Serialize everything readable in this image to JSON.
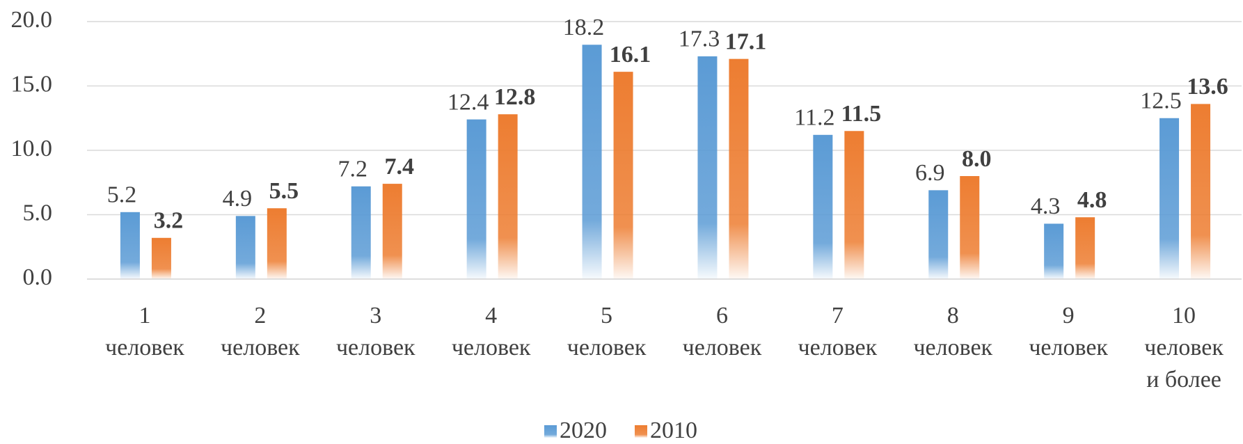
{
  "chart_data": {
    "type": "bar",
    "categories": [
      "1\nчеловек",
      "2\nчеловек",
      "3\nчеловек",
      "4\nчеловек",
      "5\nчеловек",
      "6\nчеловек",
      "7\nчеловек",
      "8\nчеловек",
      "9\nчеловек",
      "10\nчеловек\nи более"
    ],
    "series": [
      {
        "name": "2020",
        "color": "#5b9bd5",
        "values": [
          5.2,
          4.9,
          7.2,
          12.4,
          18.2,
          17.3,
          11.2,
          6.9,
          4.3,
          12.5
        ],
        "value_labels": [
          "5.2",
          "4.9",
          "7.2",
          "12.4",
          "18.2",
          "17.3",
          "11.2",
          "6.9",
          "4.3",
          "12.5"
        ],
        "label_color": "#404040"
      },
      {
        "name": "2010",
        "color": "#ed7d31",
        "values": [
          3.2,
          5.5,
          7.4,
          12.8,
          16.1,
          17.1,
          11.5,
          8,
          4.8,
          13.6
        ],
        "value_labels": [
          "3.2",
          "5.5",
          "7.4",
          "12.8",
          "16.1",
          "17.1",
          "11.5",
          "8.0",
          "4.8",
          "13.6"
        ],
        "label_color": "#00b0f0"
      }
    ],
    "ylim": [
      0,
      20
    ],
    "yticks": [
      {
        "value": 0,
        "label": "0.0"
      },
      {
        "value": 5,
        "label": "5.0"
      },
      {
        "value": 10,
        "label": "10.0"
      },
      {
        "value": 15,
        "label": "15.0"
      },
      {
        "value": 20,
        "label": "20.0"
      }
    ],
    "grid": true,
    "legend": "bottom"
  }
}
